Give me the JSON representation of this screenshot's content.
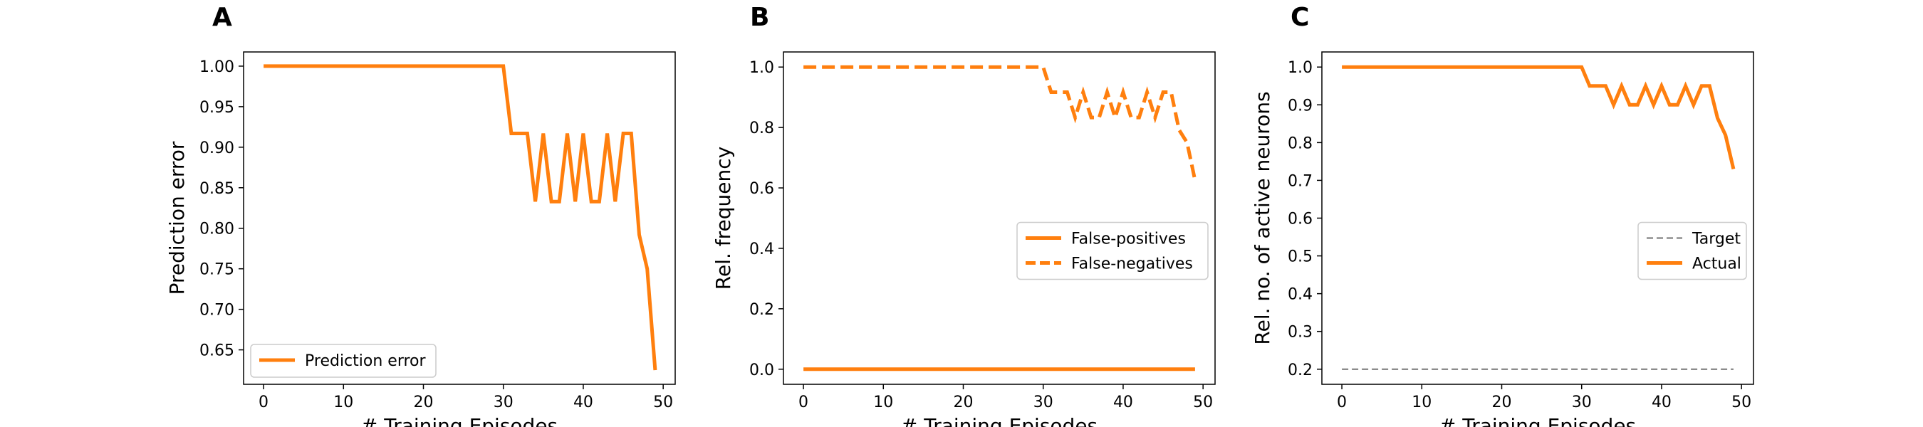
{
  "chart_data": [
    {
      "panel": "A",
      "type": "line",
      "xlabel": "# Training Episodes",
      "ylabel": "Prediction error",
      "xlim": [
        -2.5,
        51.5
      ],
      "ylim": [
        0.6075,
        1.0175
      ],
      "xticks": [
        0,
        10,
        20,
        30,
        40,
        50
      ],
      "yticks": [
        0.65,
        0.7,
        0.75,
        0.8,
        0.85,
        0.9,
        0.95,
        1.0
      ],
      "legend_position": "lower-left",
      "x": [
        0,
        1,
        2,
        3,
        4,
        5,
        6,
        7,
        8,
        9,
        10,
        11,
        12,
        13,
        14,
        15,
        16,
        17,
        18,
        19,
        20,
        21,
        22,
        23,
        24,
        25,
        26,
        27,
        28,
        29,
        30,
        31,
        32,
        33,
        34,
        35,
        36,
        37,
        38,
        39,
        40,
        41,
        42,
        43,
        44,
        45,
        46,
        47,
        48,
        49
      ],
      "series": [
        {
          "name": "Prediction error",
          "color": "#ff7f0e",
          "style": "solid",
          "values": [
            1,
            1,
            1,
            1,
            1,
            1,
            1,
            1,
            1,
            1,
            1,
            1,
            1,
            1,
            1,
            1,
            1,
            1,
            1,
            1,
            1,
            1,
            1,
            1,
            1,
            1,
            1,
            1,
            1,
            1,
            1,
            0.917,
            0.917,
            0.917,
            0.833,
            0.917,
            0.833,
            0.833,
            0.917,
            0.833,
            0.917,
            0.833,
            0.833,
            0.917,
            0.833,
            0.917,
            0.917,
            0.792,
            0.75,
            0.625
          ]
        }
      ]
    },
    {
      "panel": "B",
      "type": "line",
      "xlabel": "# Training Episodes",
      "ylabel": "Rel. frequency",
      "xlim": [
        -2.5,
        51.5
      ],
      "ylim": [
        -0.05,
        1.05
      ],
      "xticks": [
        0,
        10,
        20,
        30,
        40,
        50
      ],
      "yticks": [
        0.0,
        0.2,
        0.4,
        0.6,
        0.8,
        1.0
      ],
      "legend_position": "center-right",
      "x": [
        0,
        1,
        2,
        3,
        4,
        5,
        6,
        7,
        8,
        9,
        10,
        11,
        12,
        13,
        14,
        15,
        16,
        17,
        18,
        19,
        20,
        21,
        22,
        23,
        24,
        25,
        26,
        27,
        28,
        29,
        30,
        31,
        32,
        33,
        34,
        35,
        36,
        37,
        38,
        39,
        40,
        41,
        42,
        43,
        44,
        45,
        46,
        47,
        48,
        49
      ],
      "series": [
        {
          "name": "False-positives",
          "color": "#ff7f0e",
          "style": "solid",
          "values": [
            0,
            0,
            0,
            0,
            0,
            0,
            0,
            0,
            0,
            0,
            0,
            0,
            0,
            0,
            0,
            0,
            0,
            0,
            0,
            0,
            0,
            0,
            0,
            0,
            0,
            0,
            0,
            0,
            0,
            0,
            0,
            0,
            0,
            0,
            0,
            0,
            0,
            0,
            0,
            0,
            0,
            0,
            0,
            0,
            0,
            0,
            0,
            0,
            0,
            0
          ]
        },
        {
          "name": "False-negatives",
          "color": "#ff7f0e",
          "style": "dashed",
          "values": [
            1,
            1,
            1,
            1,
            1,
            1,
            1,
            1,
            1,
            1,
            1,
            1,
            1,
            1,
            1,
            1,
            1,
            1,
            1,
            1,
            1,
            1,
            1,
            1,
            1,
            1,
            1,
            1,
            1,
            1,
            1,
            0.917,
            0.917,
            0.917,
            0.833,
            0.917,
            0.833,
            0.833,
            0.917,
            0.833,
            0.917,
            0.833,
            0.833,
            0.917,
            0.833,
            0.917,
            0.917,
            0.792,
            0.75,
            0.625
          ]
        }
      ]
    },
    {
      "panel": "C",
      "type": "line",
      "xlabel": "# Training Episodes",
      "ylabel": "Rel. no. of active neurons",
      "xlim": [
        -2.5,
        51.5
      ],
      "ylim": [
        0.16,
        1.04
      ],
      "xticks": [
        0,
        10,
        20,
        30,
        40,
        50
      ],
      "yticks": [
        0.2,
        0.3,
        0.4,
        0.5,
        0.6,
        0.7,
        0.8,
        0.9,
        1.0
      ],
      "legend_position": "center-right",
      "x": [
        0,
        1,
        2,
        3,
        4,
        5,
        6,
        7,
        8,
        9,
        10,
        11,
        12,
        13,
        14,
        15,
        16,
        17,
        18,
        19,
        20,
        21,
        22,
        23,
        24,
        25,
        26,
        27,
        28,
        29,
        30,
        31,
        32,
        33,
        34,
        35,
        36,
        37,
        38,
        39,
        40,
        41,
        42,
        43,
        44,
        45,
        46,
        47,
        48,
        49
      ],
      "series": [
        {
          "name": "Target",
          "color": "#808080",
          "style": "dashed",
          "values": [
            0.2,
            0.2,
            0.2,
            0.2,
            0.2,
            0.2,
            0.2,
            0.2,
            0.2,
            0.2,
            0.2,
            0.2,
            0.2,
            0.2,
            0.2,
            0.2,
            0.2,
            0.2,
            0.2,
            0.2,
            0.2,
            0.2,
            0.2,
            0.2,
            0.2,
            0.2,
            0.2,
            0.2,
            0.2,
            0.2,
            0.2,
            0.2,
            0.2,
            0.2,
            0.2,
            0.2,
            0.2,
            0.2,
            0.2,
            0.2,
            0.2,
            0.2,
            0.2,
            0.2,
            0.2,
            0.2,
            0.2,
            0.2,
            0.2,
            0.2
          ]
        },
        {
          "name": "Actual",
          "color": "#ff7f0e",
          "style": "solid",
          "values": [
            1,
            1,
            1,
            1,
            1,
            1,
            1,
            1,
            1,
            1,
            1,
            1,
            1,
            1,
            1,
            1,
            1,
            1,
            1,
            1,
            1,
            1,
            1,
            1,
            1,
            1,
            1,
            1,
            1,
            1,
            1,
            0.95,
            0.95,
            0.95,
            0.9,
            0.95,
            0.9,
            0.9,
            0.95,
            0.9,
            0.95,
            0.9,
            0.9,
            0.95,
            0.9,
            0.95,
            0.95,
            0.865,
            0.82,
            0.73
          ]
        }
      ]
    }
  ]
}
